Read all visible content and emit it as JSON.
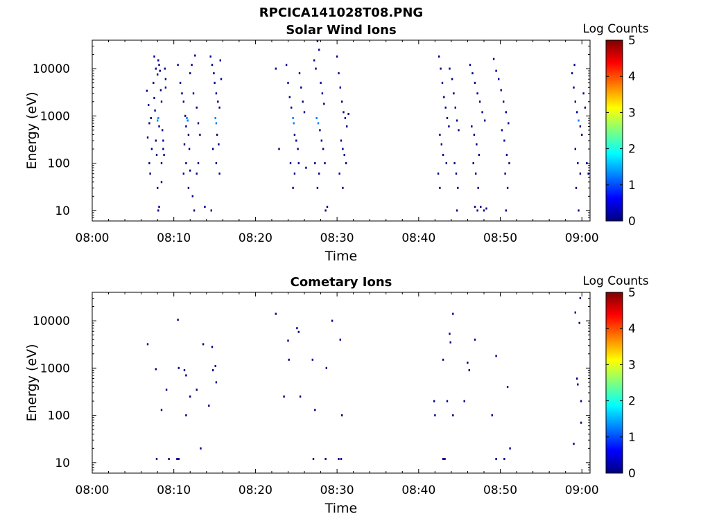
{
  "figure_title": "RPCICA141028T08.PNG",
  "colors": {
    "colormap": [
      "#00007f",
      "#0000ff",
      "#007fff",
      "#00ffff",
      "#7fff7f",
      "#ffff00",
      "#ff7f00",
      "#ff0000",
      "#7f0000"
    ],
    "mark": "#00008b",
    "axis": "#000000",
    "background": "#ffffff"
  },
  "chart_data": [
    {
      "type": "heatmap",
      "title": "Solar Wind Ions",
      "xlabel": "Time",
      "ylabel": "Energy (eV)",
      "xticks": [
        "08:00",
        "08:10",
        "08:20",
        "08:30",
        "08:40",
        "08:50",
        "09:00"
      ],
      "xlim_minutes": [
        0,
        61
      ],
      "yticks": [
        "10",
        "100",
        "1000",
        "10000"
      ],
      "ylim": [
        6,
        40000
      ],
      "yscale": "log",
      "colorbar": {
        "label": "Log Counts",
        "ticks": [
          "0",
          "1",
          "2",
          "3",
          "4",
          "5"
        ],
        "range": [
          0,
          5
        ]
      },
      "points": [
        [
          6.7,
          3400,
          0
        ],
        [
          6.9,
          1700,
          0
        ],
        [
          6.8,
          350,
          0
        ],
        [
          7.0,
          700,
          0
        ],
        [
          7.2,
          900,
          0
        ],
        [
          7.3,
          200,
          0
        ],
        [
          7.0,
          100,
          0
        ],
        [
          7.1,
          60,
          0
        ],
        [
          7.5,
          5000,
          0
        ],
        [
          7.6,
          2400,
          0
        ],
        [
          7.7,
          1300,
          0
        ],
        [
          7.8,
          300,
          0
        ],
        [
          7.9,
          150,
          0
        ],
        [
          7.6,
          18000,
          0
        ],
        [
          7.8,
          10000,
          0
        ],
        [
          8.0,
          7500,
          0
        ],
        [
          8.1,
          15000,
          0
        ],
        [
          8.2,
          12000,
          0
        ],
        [
          8.3,
          9000,
          0
        ],
        [
          8.0,
          800,
          1
        ],
        [
          8.1,
          900,
          1
        ],
        [
          8.2,
          600,
          0
        ],
        [
          8.4,
          3500,
          0
        ],
        [
          8.5,
          2000,
          0
        ],
        [
          8.6,
          500,
          0
        ],
        [
          8.7,
          300,
          0
        ],
        [
          8.8,
          150,
          0
        ],
        [
          8.9,
          10000,
          0
        ],
        [
          9.0,
          6000,
          0
        ],
        [
          9.0,
          4000,
          0
        ],
        [
          8.7,
          200,
          0
        ],
        [
          8.5,
          100,
          0
        ],
        [
          8.0,
          30,
          0
        ],
        [
          8.5,
          40,
          0
        ],
        [
          8.1,
          10,
          0
        ],
        [
          8.2,
          12,
          0
        ],
        [
          10.5,
          12000,
          0
        ],
        [
          10.8,
          5000,
          0
        ],
        [
          11.0,
          3000,
          0
        ],
        [
          11.2,
          2000,
          0
        ],
        [
          11.4,
          1000,
          0
        ],
        [
          11.5,
          600,
          0
        ],
        [
          11.3,
          250,
          0
        ],
        [
          11.6,
          900,
          1
        ],
        [
          11.7,
          800,
          1
        ],
        [
          11.8,
          400,
          0
        ],
        [
          11.9,
          200,
          0
        ],
        [
          12.0,
          8000,
          0
        ],
        [
          12.2,
          12000,
          0
        ],
        [
          12.4,
          3000,
          0
        ],
        [
          12.6,
          19000,
          0
        ],
        [
          12.8,
          1500,
          0
        ],
        [
          13.0,
          700,
          0
        ],
        [
          13.2,
          400,
          0
        ],
        [
          11.2,
          60,
          0
        ],
        [
          11.5,
          100,
          0
        ],
        [
          11.8,
          30,
          0
        ],
        [
          12.0,
          70,
          0
        ],
        [
          12.3,
          20,
          0
        ],
        [
          12.5,
          10,
          0
        ],
        [
          12.8,
          60,
          0
        ],
        [
          13.0,
          100,
          0
        ],
        [
          14.5,
          18000,
          0
        ],
        [
          14.7,
          12000,
          0
        ],
        [
          14.9,
          8000,
          0
        ],
        [
          15.0,
          5000,
          0
        ],
        [
          15.2,
          3000,
          0
        ],
        [
          15.4,
          2000,
          0
        ],
        [
          15.6,
          1500,
          0
        ],
        [
          15.1,
          900,
          1
        ],
        [
          15.2,
          700,
          1
        ],
        [
          15.3,
          400,
          0
        ],
        [
          15.5,
          250,
          0
        ],
        [
          15.7,
          15000,
          0
        ],
        [
          15.8,
          6000,
          0
        ],
        [
          14.8,
          200,
          0
        ],
        [
          15.2,
          100,
          0
        ],
        [
          15.6,
          60,
          0
        ],
        [
          14.6,
          10,
          0
        ],
        [
          13.8,
          12,
          0
        ],
        [
          22.5,
          10000,
          0
        ],
        [
          22.9,
          200,
          0
        ],
        [
          23.8,
          12000,
          0
        ],
        [
          24.0,
          5000,
          0
        ],
        [
          24.2,
          2500,
          0
        ],
        [
          24.4,
          1500,
          0
        ],
        [
          24.6,
          900,
          1
        ],
        [
          24.7,
          700,
          1
        ],
        [
          24.8,
          400,
          0
        ],
        [
          25.0,
          300,
          0
        ],
        [
          25.2,
          200,
          0
        ],
        [
          25.4,
          8000,
          0
        ],
        [
          25.6,
          4000,
          0
        ],
        [
          25.8,
          2000,
          0
        ],
        [
          26.0,
          1200,
          0
        ],
        [
          24.3,
          100,
          0
        ],
        [
          24.8,
          60,
          0
        ],
        [
          25.3,
          100,
          0
        ],
        [
          26.2,
          80,
          0
        ],
        [
          24.6,
          30,
          0
        ],
        [
          27.2,
          15000,
          0
        ],
        [
          27.4,
          10000,
          0
        ],
        [
          27.6,
          38000,
          0
        ],
        [
          27.8,
          25000,
          0
        ],
        [
          28.0,
          5000,
          0
        ],
        [
          28.2,
          3000,
          0
        ],
        [
          28.4,
          1800,
          0
        ],
        [
          27.5,
          900,
          1
        ],
        [
          27.7,
          700,
          1
        ],
        [
          27.9,
          500,
          0
        ],
        [
          28.1,
          300,
          0
        ],
        [
          28.3,
          200,
          0
        ],
        [
          27.3,
          100,
          0
        ],
        [
          27.8,
          60,
          0
        ],
        [
          28.5,
          100,
          0
        ],
        [
          27.6,
          30,
          0
        ],
        [
          28.6,
          10,
          0
        ],
        [
          28.8,
          12,
          0
        ],
        [
          30.0,
          18000,
          0
        ],
        [
          30.2,
          8000,
          0
        ],
        [
          30.4,
          4000,
          0
        ],
        [
          30.6,
          2000,
          0
        ],
        [
          30.8,
          1200,
          0
        ],
        [
          31.0,
          900,
          0
        ],
        [
          31.2,
          600,
          0
        ],
        [
          30.5,
          300,
          0
        ],
        [
          30.7,
          200,
          0
        ],
        [
          30.9,
          150,
          0
        ],
        [
          31.1,
          100,
          0
        ],
        [
          30.3,
          60,
          0
        ],
        [
          30.7,
          30,
          0
        ],
        [
          31.4,
          1100,
          0
        ],
        [
          42.5,
          18000,
          0
        ],
        [
          42.7,
          10000,
          0
        ],
        [
          42.9,
          5000,
          0
        ],
        [
          43.1,
          2500,
          0
        ],
        [
          43.3,
          1500,
          0
        ],
        [
          43.5,
          900,
          0
        ],
        [
          43.7,
          600,
          0
        ],
        [
          42.6,
          400,
          0
        ],
        [
          42.8,
          250,
          0
        ],
        [
          43.0,
          150,
          0
        ],
        [
          43.4,
          100,
          0
        ],
        [
          42.4,
          60,
          0
        ],
        [
          42.6,
          30,
          0
        ],
        [
          43.8,
          10000,
          0
        ],
        [
          44.1,
          6000,
          0
        ],
        [
          44.3,
          3000,
          0
        ],
        [
          44.5,
          1500,
          0
        ],
        [
          44.7,
          800,
          0
        ],
        [
          44.9,
          500,
          0
        ],
        [
          44.4,
          100,
          0
        ],
        [
          44.6,
          60,
          0
        ],
        [
          44.8,
          30,
          0
        ],
        [
          44.7,
          10,
          0
        ],
        [
          46.3,
          12000,
          0
        ],
        [
          46.6,
          8000,
          0
        ],
        [
          46.9,
          5000,
          0
        ],
        [
          47.2,
          3000,
          0
        ],
        [
          47.5,
          2000,
          0
        ],
        [
          47.8,
          1200,
          0
        ],
        [
          48.1,
          800,
          0
        ],
        [
          46.5,
          600,
          0
        ],
        [
          46.8,
          400,
          0
        ],
        [
          47.1,
          250,
          0
        ],
        [
          47.4,
          150,
          0
        ],
        [
          46.7,
          100,
          0
        ],
        [
          47.0,
          60,
          0
        ],
        [
          47.3,
          30,
          0
        ],
        [
          46.9,
          12,
          0
        ],
        [
          47.2,
          10,
          0
        ],
        [
          47.6,
          12,
          0
        ],
        [
          48.0,
          10,
          0
        ],
        [
          48.3,
          11,
          0
        ],
        [
          49.2,
          16000,
          0
        ],
        [
          49.5,
          9000,
          0
        ],
        [
          49.8,
          6000,
          0
        ],
        [
          50.1,
          3500,
          0
        ],
        [
          50.4,
          2000,
          0
        ],
        [
          50.7,
          1200,
          0
        ],
        [
          51.0,
          700,
          0
        ],
        [
          50.2,
          500,
          0
        ],
        [
          50.5,
          300,
          0
        ],
        [
          50.8,
          150,
          0
        ],
        [
          51.1,
          100,
          0
        ],
        [
          50.6,
          60,
          0
        ],
        [
          50.9,
          30,
          0
        ],
        [
          50.7,
          10,
          0
        ],
        [
          58.8,
          8000,
          0
        ],
        [
          59.0,
          4000,
          0
        ],
        [
          59.2,
          2000,
          0
        ],
        [
          59.4,
          1200,
          0
        ],
        [
          59.6,
          800,
          1
        ],
        [
          59.8,
          600,
          0
        ],
        [
          60.0,
          400,
          0
        ],
        [
          59.2,
          200,
          0
        ],
        [
          59.5,
          100,
          0
        ],
        [
          59.8,
          60,
          0
        ],
        [
          59.3,
          30,
          0
        ],
        [
          59.6,
          10,
          0
        ],
        [
          60.2,
          3000,
          0
        ],
        [
          60.4,
          1500,
          0
        ],
        [
          59.1,
          12000,
          0
        ],
        [
          60.6,
          100,
          0
        ],
        [
          60.8,
          60,
          0
        ]
      ]
    },
    {
      "type": "heatmap",
      "title": "Cometary Ions",
      "xlabel": "Time",
      "ylabel": "Energy (eV)",
      "xticks": [
        "08:00",
        "08:10",
        "08:20",
        "08:30",
        "08:40",
        "08:50",
        "09:00"
      ],
      "xlim_minutes": [
        0,
        61
      ],
      "yticks": [
        "10",
        "100",
        "1000",
        "10000"
      ],
      "ylim": [
        6,
        40000
      ],
      "yscale": "log",
      "colorbar": {
        "label": "Log Counts",
        "ticks": [
          "0",
          "1",
          "2",
          "3",
          "4",
          "5"
        ],
        "range": [
          0,
          5
        ]
      },
      "points": [
        [
          6.8,
          3200,
          0
        ],
        [
          7.8,
          950,
          0
        ],
        [
          8.5,
          130,
          0
        ],
        [
          9.1,
          350,
          0
        ],
        [
          7.9,
          12,
          0
        ],
        [
          9.4,
          12,
          0
        ],
        [
          10.4,
          12,
          0
        ],
        [
          10.6,
          12,
          0
        ],
        [
          10.5,
          10500,
          0
        ],
        [
          10.6,
          1000,
          0
        ],
        [
          11.3,
          900,
          0
        ],
        [
          11.5,
          700,
          0
        ],
        [
          11.5,
          100,
          0
        ],
        [
          12.0,
          250,
          0
        ],
        [
          12.8,
          350,
          0
        ],
        [
          13.3,
          20,
          0
        ],
        [
          13.6,
          3200,
          0
        ],
        [
          14.3,
          160,
          0
        ],
        [
          14.7,
          2800,
          0
        ],
        [
          14.8,
          900,
          0
        ],
        [
          15.1,
          1100,
          0
        ],
        [
          15.2,
          500,
          0
        ],
        [
          22.5,
          14000,
          0
        ],
        [
          23.5,
          250,
          0
        ],
        [
          24.0,
          3800,
          0
        ],
        [
          24.1,
          1500,
          0
        ],
        [
          25.1,
          7000,
          0
        ],
        [
          25.3,
          5800,
          0
        ],
        [
          25.5,
          250,
          0
        ],
        [
          27.0,
          1500,
          0
        ],
        [
          27.1,
          12,
          0
        ],
        [
          27.3,
          130,
          0
        ],
        [
          28.6,
          12,
          0
        ],
        [
          28.7,
          1000,
          0
        ],
        [
          29.4,
          10000,
          0
        ],
        [
          30.2,
          12,
          0
        ],
        [
          30.4,
          4000,
          0
        ],
        [
          30.5,
          12,
          0
        ],
        [
          30.6,
          100,
          0
        ],
        [
          41.9,
          200,
          0
        ],
        [
          42.0,
          100,
          0
        ],
        [
          43.0,
          12,
          0
        ],
        [
          43.2,
          12,
          0
        ],
        [
          43.0,
          1500,
          0
        ],
        [
          43.5,
          200,
          0
        ],
        [
          43.8,
          5300,
          0
        ],
        [
          43.9,
          3500,
          0
        ],
        [
          44.2,
          14000,
          0
        ],
        [
          44.2,
          100,
          0
        ],
        [
          45.6,
          200,
          0
        ],
        [
          46.0,
          1300,
          0
        ],
        [
          46.2,
          900,
          0
        ],
        [
          46.9,
          4000,
          0
        ],
        [
          49.0,
          100,
          0
        ],
        [
          49.5,
          1800,
          0
        ],
        [
          49.5,
          12,
          0
        ],
        [
          50.5,
          12,
          0
        ],
        [
          50.9,
          400,
          0
        ],
        [
          51.2,
          20,
          0
        ],
        [
          59.0,
          25,
          0
        ],
        [
          59.2,
          15000,
          0
        ],
        [
          59.4,
          600,
          0
        ],
        [
          59.5,
          450,
          0
        ],
        [
          59.7,
          9000,
          0
        ],
        [
          59.8,
          30000,
          0
        ],
        [
          59.9,
          200,
          0
        ],
        [
          59.9,
          70,
          0
        ]
      ]
    }
  ]
}
